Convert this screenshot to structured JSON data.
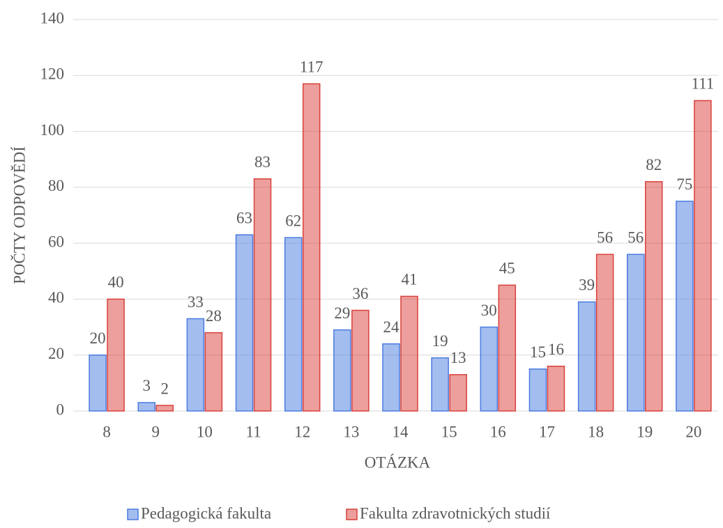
{
  "chart_data": {
    "type": "bar",
    "categories": [
      "8",
      "9",
      "10",
      "11",
      "12",
      "13",
      "14",
      "15",
      "16",
      "17",
      "18",
      "19",
      "20"
    ],
    "series": [
      {
        "name": "Pedagogická fakulta",
        "color": "#4a7be0",
        "values": [
          20,
          3,
          33,
          63,
          62,
          29,
          24,
          19,
          30,
          15,
          39,
          56,
          75
        ]
      },
      {
        "name": "Fakulta zdravotnických studií",
        "color": "#d9403a",
        "values": [
          40,
          2,
          28,
          83,
          117,
          36,
          41,
          13,
          45,
          16,
          56,
          82,
          111
        ]
      }
    ],
    "xlabel": "OTÁZKA",
    "ylabel": "POČTY ODPOVĚDÍ",
    "ylim": [
      0,
      140
    ],
    "yticks": [
      0,
      20,
      40,
      60,
      80,
      100,
      120,
      140
    ],
    "grid": true,
    "legend": "bottom"
  }
}
